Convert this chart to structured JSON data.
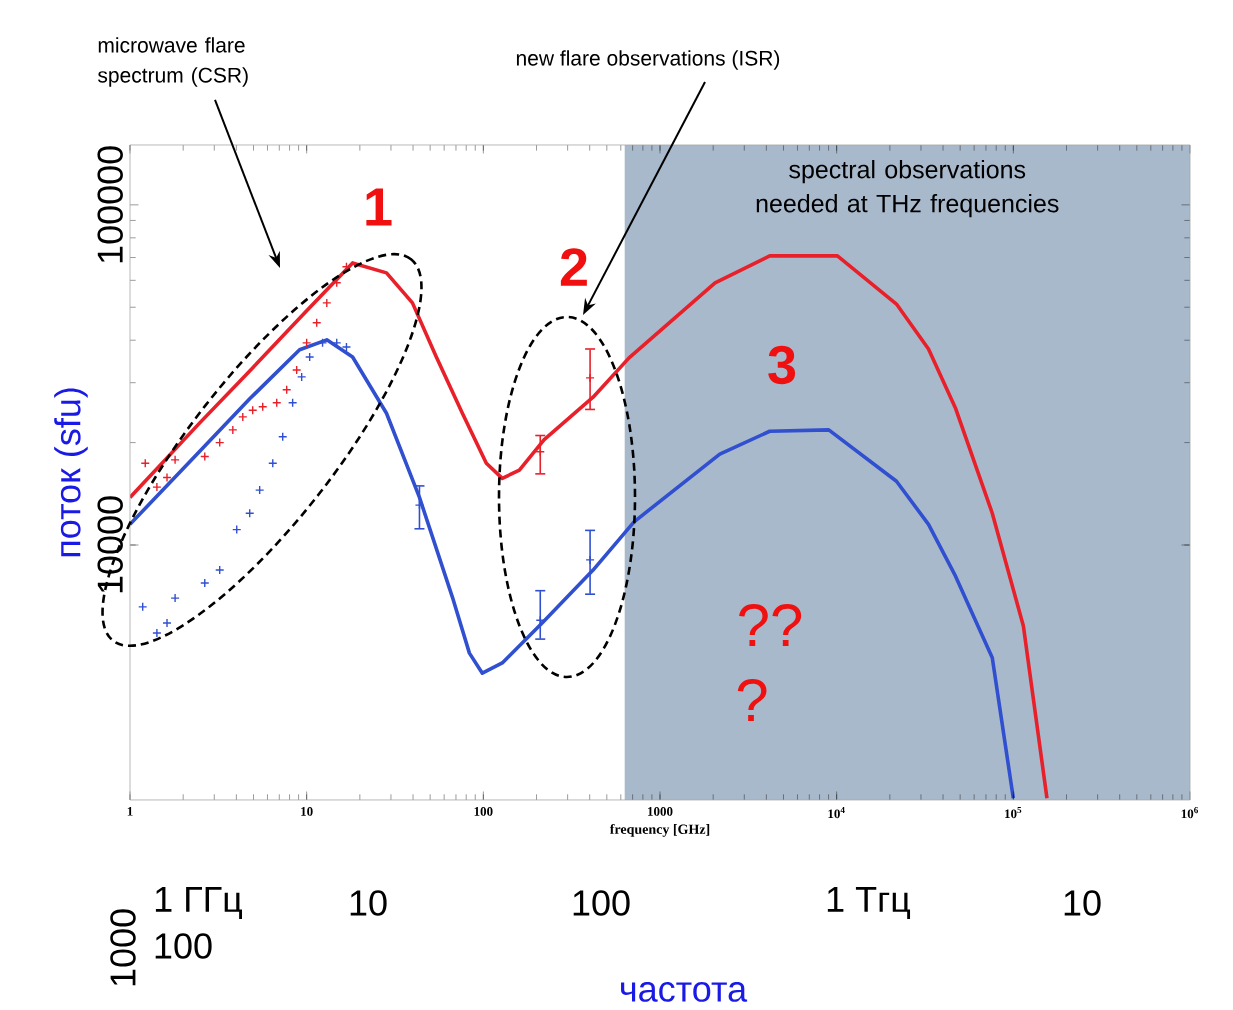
{
  "chart_data": {
    "type": "line",
    "xlabel": "frequency [GHz]",
    "ylabel": "поток (sfu)",
    "log": "xy",
    "xlim": [
      1,
      1000000
    ],
    "ylim": [
      1780,
      150000
    ],
    "xticks": [
      1,
      10,
      100,
      1000,
      {
        "value": 10000,
        "label": "10$^{4}$"
      },
      {
        "value": 100000,
        "label": "10$^{5}$"
      },
      {
        "value": 1000000,
        "label": "10$^{6}$"
      }
    ],
    "yticks": [
      10000,
      100000
    ],
    "bands": [
      {
        "axis": "x",
        "from": 630,
        "to": 1000000,
        "label": "spectral observations needed at THz frequencies",
        "color": "#a9b9cc"
      }
    ],
    "series": [
      {
        "color": "#e8202a",
        "x": [
          1,
          2.49,
          4.76,
          10,
          18.2,
          28.3,
          39.7,
          54.2,
          76.1,
          104,
          128,
          160,
          221,
          418,
          668,
          2050,
          4180,
          10100,
          21800,
          33100,
          47000,
          76000,
          114000,
          155000
        ],
        "values": [
          13800,
          22900,
          32500,
          48800,
          67500,
          63100,
          51500,
          35700,
          24400,
          17400,
          15700,
          16600,
          20400,
          27200,
          35500,
          59000,
          70800,
          70800,
          51100,
          37700,
          25300,
          12400,
          5780,
          1800
        ]
      },
      {
        "color": "#3050d0",
        "x": [
          1,
          2.49,
          4.76,
          9.12,
          13.0,
          18.2,
          28.3,
          43.5,
          66.8,
          83.4,
          98.7,
          128,
          218,
          418,
          713,
          2180,
          4180,
          9020,
          21800,
          33100,
          47000,
          76000,
          100000
        ],
        "values": [
          11500,
          18900,
          26900,
          37500,
          40100,
          35700,
          24400,
          13800,
          7030,
          4810,
          4200,
          4500,
          5940,
          8440,
          11700,
          18500,
          21600,
          21800,
          15400,
          11500,
          8110,
          4660,
          1800
        ]
      },
      {
        "type": "scatter",
        "marker": "cross",
        "color": "#e8202a",
        "x": [
          1.22,
          1.42,
          1.62,
          1.8,
          2.65,
          3.22,
          3.82,
          4.35,
          4.95,
          5.64,
          6.77,
          7.71,
          8.78,
          10,
          11.4,
          13,
          14.8,
          16.8,
          210,
          402
        ],
        "values": [
          17400,
          14800,
          15800,
          17800,
          18200,
          20000,
          21800,
          23800,
          24900,
          25500,
          26200,
          28600,
          32700,
          39300,
          45000,
          51500,
          59000,
          65800,
          18800,
          31000
        ],
        "errors": [
          null,
          null,
          null,
          null,
          null,
          null,
          null,
          null,
          null,
          null,
          null,
          null,
          null,
          null,
          null,
          null,
          null,
          null,
          [
            16100,
            21100
          ],
          [
            24900,
            37900
          ]
        ]
      },
      {
        "type": "scatter",
        "marker": "cross",
        "color": "#3050d0",
        "x": [
          1.18,
          1.42,
          1.62,
          1.8,
          2.65,
          3.22,
          4.02,
          4.76,
          5.42,
          6.43,
          7.32,
          8.33,
          9.37,
          10.4,
          12.3,
          14.8,
          16.8,
          43.5,
          210,
          402
        ],
        "values": [
          6580,
          5510,
          5900,
          6980,
          7730,
          8440,
          11100,
          12400,
          14500,
          17400,
          20800,
          26200,
          31200,
          35700,
          39300,
          39300,
          38200,
          13100,
          6010,
          9040
        ],
        "errors": [
          null,
          null,
          null,
          null,
          null,
          null,
          null,
          null,
          null,
          null,
          null,
          null,
          null,
          null,
          null,
          null,
          null,
          [
            11100,
            15000
          ],
          [
            5260,
            7380
          ],
          [
            7130,
            11100
          ]
        ]
      }
    ],
    "annotations": [
      "microwave flare spectrum (CSR)",
      "new flare observations (ISR)",
      "1",
      "2",
      "3",
      "??",
      "?",
      "1 ГГц",
      "10",
      "100",
      "1 Тгц",
      "10",
      "100",
      "1000",
      "частота"
    ]
  }
}
